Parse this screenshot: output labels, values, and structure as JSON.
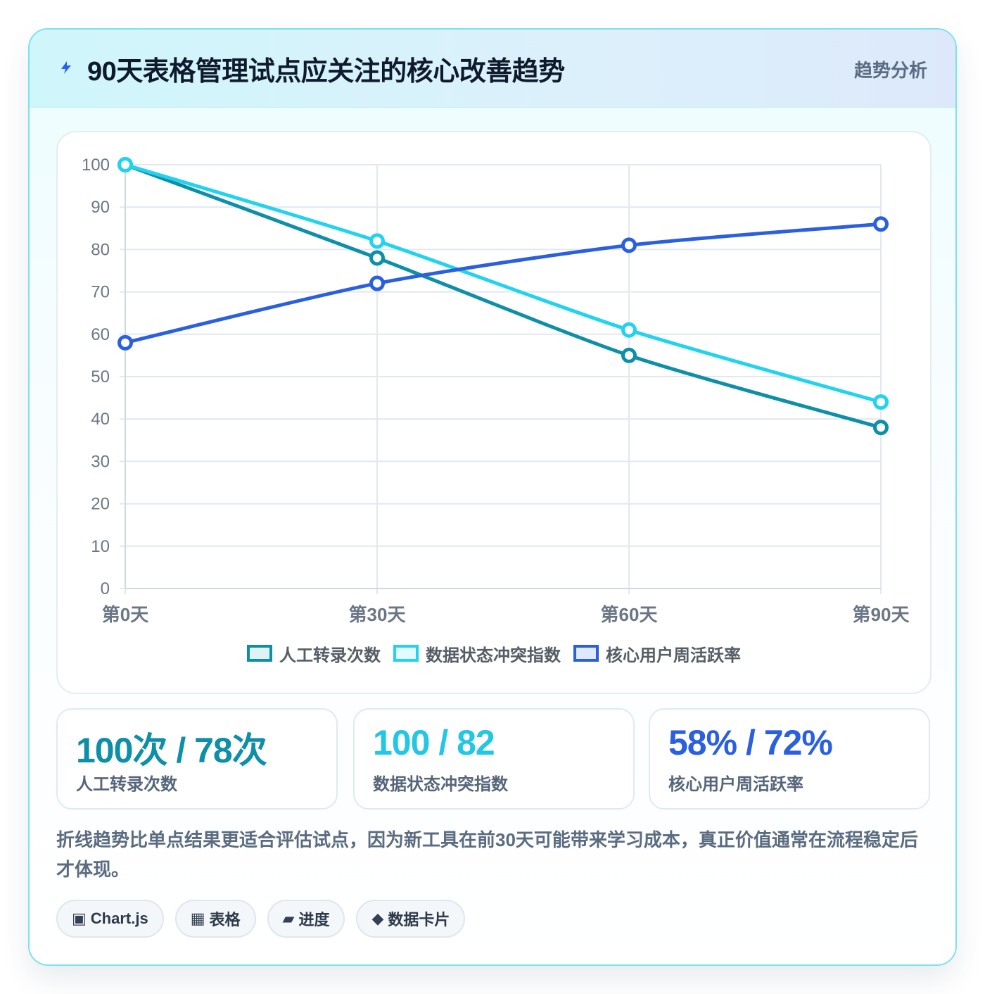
{
  "header": {
    "title": "90天表格管理试点应关注的核心改善趋势",
    "badge": "趋势分析",
    "icon": "bolt-icon"
  },
  "chart_data": {
    "type": "line",
    "x": [
      "第0天",
      "第30天",
      "第60天",
      "第90天"
    ],
    "ylim": [
      0,
      100
    ],
    "yticks": [
      0,
      10,
      20,
      30,
      40,
      50,
      60,
      70,
      80,
      90,
      100
    ],
    "grid": true,
    "legend_position": "bottom",
    "series": [
      {
        "name": "人工转录次数",
        "values": [
          100,
          78,
          55,
          38
        ],
        "color": "#0e8fa8",
        "fill": "#dff3f7"
      },
      {
        "name": "数据状态冲突指数",
        "values": [
          100,
          82,
          61,
          44
        ],
        "color": "#22d3ee",
        "fill": "#e3fbfe"
      },
      {
        "name": "核心用户周活跃率",
        "values": [
          58,
          72,
          81,
          86
        ],
        "color": "#2a5fe0",
        "fill": "#e0e8fb"
      }
    ]
  },
  "stats": [
    {
      "value": "100次 / 78次",
      "label": "人工转录次数",
      "color": "#0e8fa8"
    },
    {
      "value": "100 / 82",
      "label": "数据状态冲突指数",
      "color": "#22c7e6"
    },
    {
      "value": "58% / 72%",
      "label": "核心用户周活跃率",
      "color": "#2a5fe0"
    }
  ],
  "description": "折线趋势比单点结果更适合评估试点，因为新工具在前30天可能带来学习成本，真正价值通常在流程稳定后才体现。",
  "tags": [
    {
      "icon": "▣",
      "label": "Chart.js",
      "icon_name": "chart-icon"
    },
    {
      "icon": "▦",
      "label": "表格",
      "icon_name": "table-icon"
    },
    {
      "icon": "▰",
      "label": "进度",
      "icon_name": "progress-icon"
    },
    {
      "icon": "◆",
      "label": "数据卡片",
      "icon_name": "diamond-icon"
    }
  ]
}
